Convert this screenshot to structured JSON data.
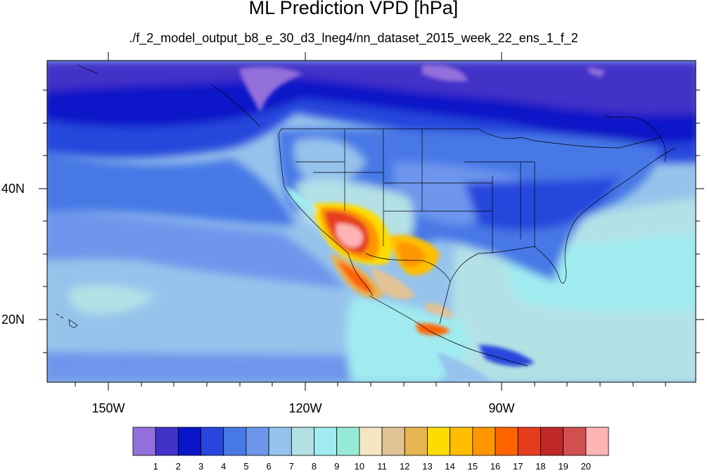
{
  "title": "ML Prediction VPD [hPa]",
  "subtitle": "./f_2_model_output_b8_e_30_d3_lneg4/nn_dataset_2015_week_22_ens_1_f_2",
  "lat_labels": [
    "40N",
    "20N"
  ],
  "lon_labels": [
    "150W",
    "120W",
    "90W"
  ],
  "colorbar": {
    "labels": [
      "1",
      "2",
      "3",
      "4",
      "5",
      "6",
      "7",
      "8",
      "9",
      "10",
      "11",
      "12",
      "13",
      "14",
      "15",
      "16",
      "17",
      "18",
      "19",
      "20"
    ],
    "colors": [
      "#9370db",
      "#4232c8",
      "#0a14c8",
      "#2846dc",
      "#4678e6",
      "#6e96ec",
      "#96c3ec",
      "#b4e1e6",
      "#a0ebf0",
      "#96ebd7",
      "#f5e6c3",
      "#e1c396",
      "#e6b450",
      "#ffdc00",
      "#ffbe00",
      "#ff9600",
      "#ff6400",
      "#e63c1e",
      "#be2828",
      "#d25050",
      "#ffb4b4"
    ]
  },
  "colors": {
    "land_outline": "#000000",
    "background": "#ffffff"
  }
}
